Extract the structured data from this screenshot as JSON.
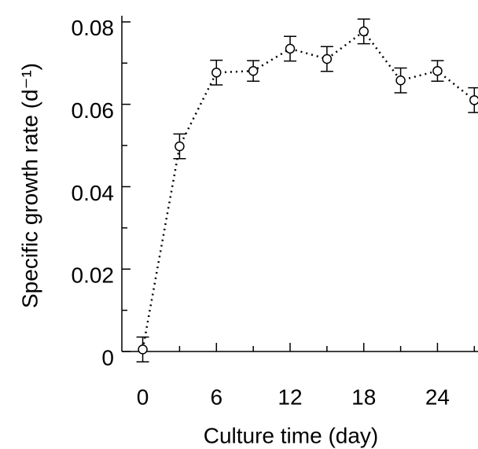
{
  "chart_data": {
    "type": "line",
    "x_label": "Culture time (day)",
    "y_label": "Specific growth rate (d⁻¹)",
    "x": [
      0,
      3,
      6,
      9,
      12,
      15,
      18,
      21,
      24,
      27
    ],
    "series": [
      {
        "color": "#000000",
        "values": [
          0.0005,
          0.0498,
          0.0677,
          0.0681,
          0.0735,
          0.071,
          0.0777,
          0.0658,
          0.0681,
          0.061
        ],
        "errors": [
          0.003,
          0.003,
          0.003,
          0.0025,
          0.003,
          0.003,
          0.003,
          0.003,
          0.0025,
          0.003
        ]
      }
    ],
    "xlim": [
      -1.7,
      27.3
    ],
    "ylim": [
      0,
      0.0815
    ],
    "xticks": [
      0,
      6,
      12,
      18,
      24
    ],
    "xminorticks": [
      3,
      9,
      15,
      21,
      27
    ],
    "yticks": [
      0,
      0.02,
      0.04,
      0.06,
      0.08
    ],
    "yminorticks": [
      0.01,
      0.03,
      0.05,
      0.07
    ]
  }
}
